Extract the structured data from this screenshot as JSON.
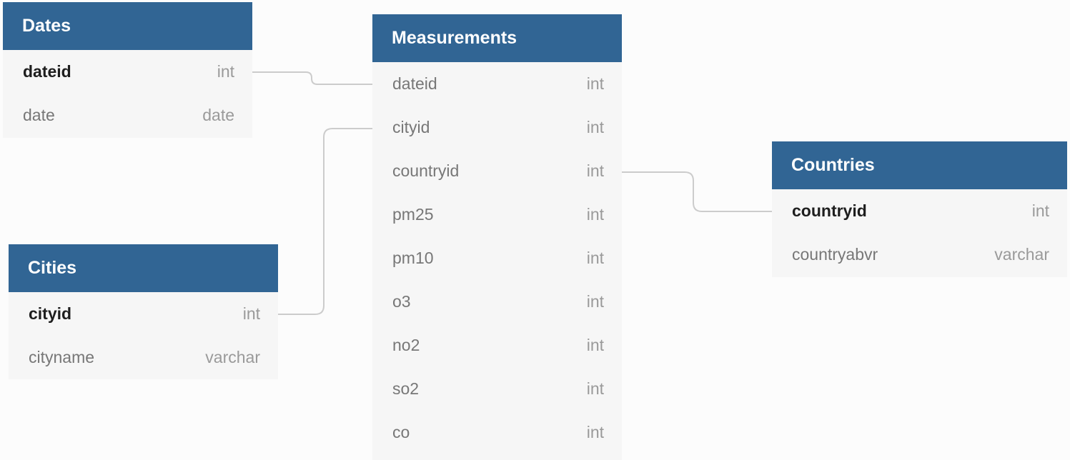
{
  "tables": {
    "dates": {
      "title": "Dates",
      "fields": [
        {
          "name": "dateid",
          "type": "int",
          "key": true
        },
        {
          "name": "date",
          "type": "date",
          "key": false
        }
      ]
    },
    "cities": {
      "title": "Cities",
      "fields": [
        {
          "name": "cityid",
          "type": "int",
          "key": true
        },
        {
          "name": "cityname",
          "type": "varchar",
          "key": false
        }
      ]
    },
    "measurements": {
      "title": "Measurements",
      "fields": [
        {
          "name": "dateid",
          "type": "int",
          "key": false
        },
        {
          "name": "cityid",
          "type": "int",
          "key": false
        },
        {
          "name": "countryid",
          "type": "int",
          "key": false
        },
        {
          "name": "pm25",
          "type": "int",
          "key": false
        },
        {
          "name": "pm10",
          "type": "int",
          "key": false
        },
        {
          "name": "o3",
          "type": "int",
          "key": false
        },
        {
          "name": "no2",
          "type": "int",
          "key": false
        },
        {
          "name": "so2",
          "type": "int",
          "key": false
        },
        {
          "name": "co",
          "type": "int",
          "key": false
        }
      ]
    },
    "countries": {
      "title": "Countries",
      "fields": [
        {
          "name": "countryid",
          "type": "int",
          "key": true
        },
        {
          "name": "countryabvr",
          "type": "varchar",
          "key": false
        }
      ]
    }
  },
  "relationships": [
    {
      "from": "dates.dateid",
      "to": "measurements.dateid"
    },
    {
      "from": "cities.cityid",
      "to": "measurements.cityid"
    },
    {
      "from": "countries.countryid",
      "to": "measurements.countryid"
    }
  ],
  "colors": {
    "header": "#316594",
    "table_body": "#f6f6f6",
    "connector": "#cccccc",
    "background": "#fcfcfc"
  }
}
